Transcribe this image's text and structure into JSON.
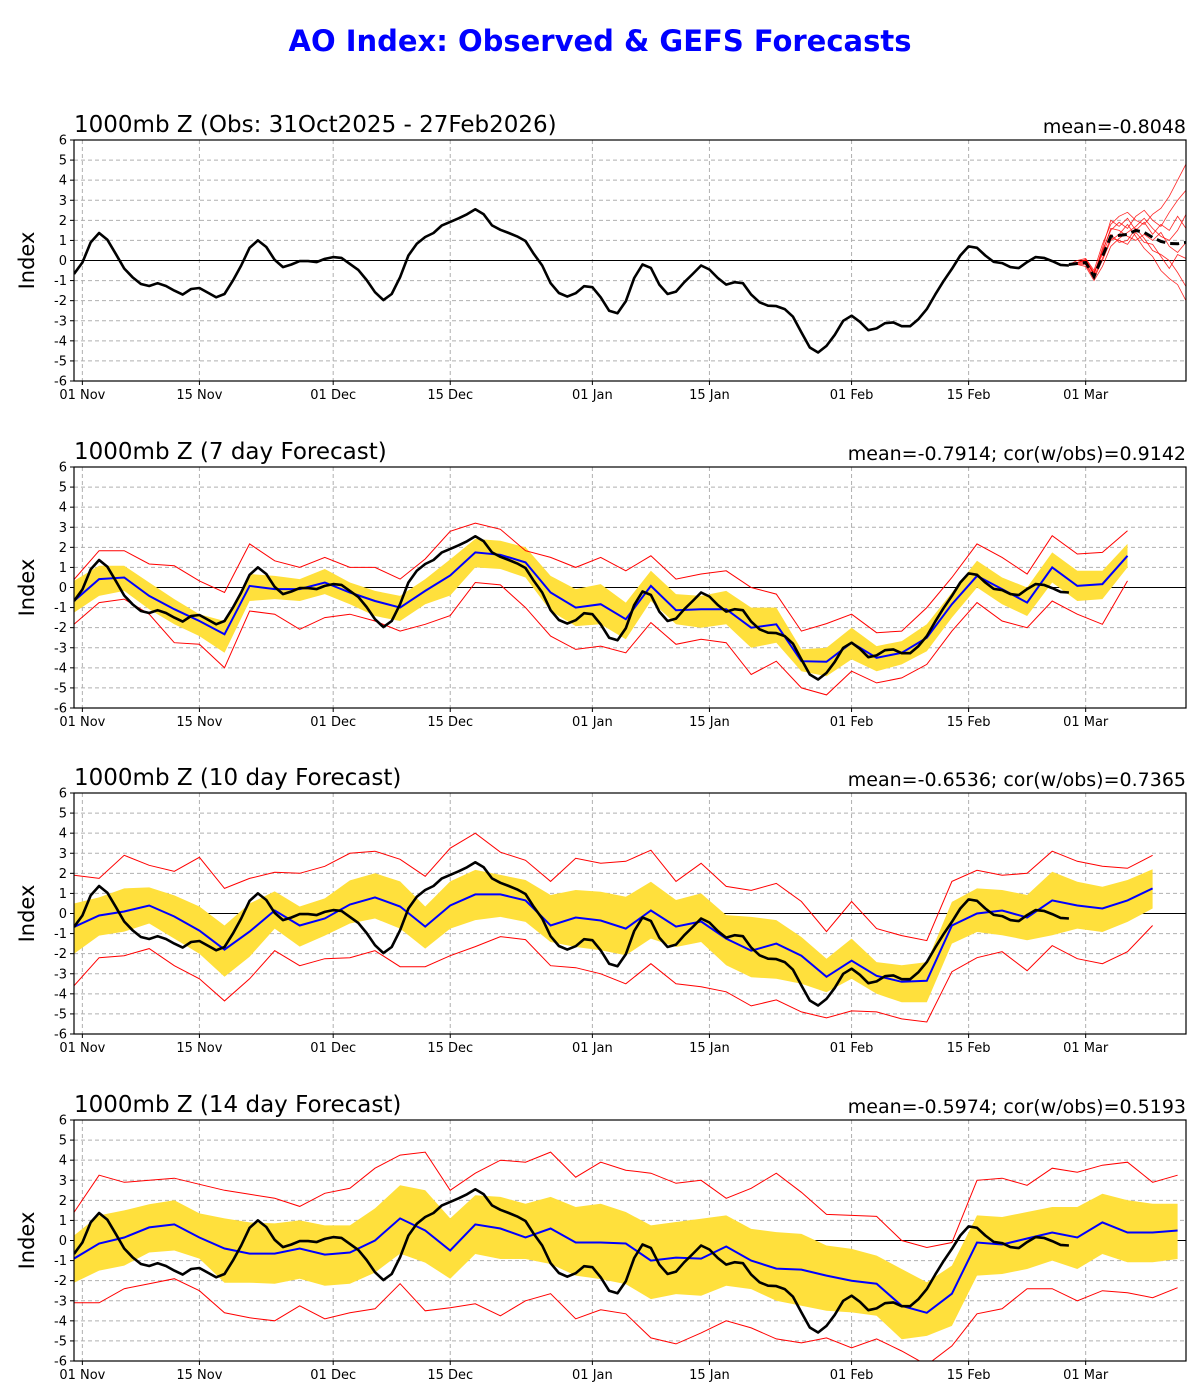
{
  "title": "AO Index: Observed & GEFS Forecasts",
  "colors": {
    "title": "#0000ff",
    "observed": "#000000",
    "ensemble_mean": "#0000ff",
    "spread_band": "#ffe03c",
    "min_max": "#ff0000",
    "members": "#ff0000",
    "grid": "#b0b0b0"
  },
  "y_ticks": [
    "-6",
    "-5",
    "-4",
    "-3",
    "-2",
    "-1",
    "0",
    "1",
    "2",
    "3",
    "4",
    "5",
    "6"
  ],
  "x_ticks": [
    {
      "label": "01 Nov",
      "date": "2025-11-01"
    },
    {
      "label": "15 Nov",
      "date": "2025-11-15"
    },
    {
      "label": "01 Dec",
      "date": "2025-12-01"
    },
    {
      "label": "15 Dec",
      "date": "2025-12-15"
    },
    {
      "label": "01 Jan",
      "date": "2026-01-01"
    },
    {
      "label": "15 Jan",
      "date": "2026-01-15"
    },
    {
      "label": "01 Feb",
      "date": "2026-02-01"
    },
    {
      "label": "15 Feb",
      "date": "2026-02-15"
    },
    {
      "label": "01 Mar",
      "date": "2026-03-01"
    }
  ],
  "chart_data": {
    "type": "line",
    "ylabel": "Index",
    "ylim": [
      -6,
      6
    ],
    "xlim": [
      "2025-10-31",
      "2026-03-13"
    ],
    "grid": true,
    "observed": {
      "start": "2025-10-31",
      "end": "2026-02-27",
      "step_days": 1,
      "values": [
        -0.67,
        -0.1,
        0.9,
        1.37,
        1.03,
        0.33,
        -0.4,
        -0.83,
        -1.17,
        -1.27,
        -1.13,
        -1.27,
        -1.5,
        -1.7,
        -1.42,
        -1.37,
        -1.6,
        -1.83,
        -1.67,
        -1.0,
        -0.25,
        0.63,
        1.0,
        0.67,
        0.03,
        -0.33,
        -0.2,
        -0.03,
        -0.03,
        -0.08,
        0.08,
        0.17,
        0.13,
        -0.17,
        -0.47,
        -0.97,
        -1.58,
        -1.97,
        -1.67,
        -0.83,
        0.25,
        0.83,
        1.17,
        1.37,
        1.75,
        1.92,
        2.1,
        2.3,
        2.55,
        2.3,
        1.75,
        1.53,
        1.37,
        1.2,
        0.97,
        0.33,
        -0.25,
        -1.13,
        -1.62,
        -1.8,
        -1.63,
        -1.28,
        -1.33,
        -1.83,
        -2.5,
        -2.63,
        -2.03,
        -0.87,
        -0.2,
        -0.37,
        -1.2,
        -1.67,
        -1.55,
        -1.08,
        -0.67,
        -0.25,
        -0.45,
        -0.87,
        -1.2,
        -1.08,
        -1.13,
        -1.7,
        -2.08,
        -2.25,
        -2.27,
        -2.42,
        -2.8,
        -3.58,
        -4.33,
        -4.58,
        -4.25,
        -3.7,
        -3.0,
        -2.75,
        -3.05,
        -3.47,
        -3.38,
        -3.12,
        -3.08,
        -3.27,
        -3.27,
        -2.92,
        -2.42,
        -1.7,
        -1.03,
        -0.42,
        0.25,
        0.7,
        0.63,
        0.25,
        -0.07,
        -0.13,
        -0.33,
        -0.38,
        -0.08,
        0.17,
        0.13,
        -0.03,
        -0.22,
        -0.25
      ]
    },
    "forecast_dates": [
      "2025-10-31",
      "2025-11-03",
      "2025-11-06",
      "2025-11-09",
      "2025-11-12",
      "2025-11-15",
      "2025-11-18",
      "2025-11-21",
      "2025-11-24",
      "2025-11-27",
      "2025-11-30",
      "2025-12-03",
      "2025-12-06",
      "2025-12-09",
      "2025-12-12",
      "2025-12-15",
      "2025-12-18",
      "2025-12-21",
      "2025-12-24",
      "2025-12-27",
      "2025-12-30",
      "2026-01-02",
      "2026-01-05",
      "2026-01-08",
      "2026-01-11",
      "2026-01-14",
      "2026-01-17",
      "2026-01-20",
      "2026-01-23",
      "2026-01-26",
      "2026-01-29",
      "2026-02-01",
      "2026-02-04",
      "2026-02-07",
      "2026-02-10",
      "2026-02-13",
      "2026-02-16",
      "2026-02-19",
      "2026-02-22",
      "2026-02-25",
      "2026-02-28",
      "2026-03-03",
      "2026-03-06",
      "2026-03-09",
      "2026-03-12"
    ],
    "panels": [
      {
        "title": "1000mb Z (Obs: 31Oct2025 - 27Feb2026)",
        "stats": "mean=-0.8048",
        "ensemble": {
          "start": "2026-02-27",
          "mean": [
            -0.2,
            -0.15,
            -0.1,
            -0.8,
            0.2,
            1.2,
            1.25,
            1.3,
            1.5,
            1.4,
            1.15,
            0.95,
            0.85,
            0.83,
            0.9
          ],
          "members": [
            [
              -0.2,
              0,
              0.1,
              -0.5,
              0.8,
              1.8,
              2.2,
              2.4,
              2.0,
              1.8,
              2.3,
              2.6,
              3.2,
              4.0,
              4.8
            ],
            [
              -0.2,
              -0.1,
              0,
              -0.7,
              0.5,
              1.5,
              1.9,
              1.6,
              2.2,
              2.5,
              2.0,
              1.7,
              2.4,
              3.0,
              3.5
            ],
            [
              -0.2,
              -0.2,
              -0.2,
              -0.9,
              0.0,
              1.0,
              1.3,
              1.8,
              1.2,
              0.6,
              0.2,
              -0.5,
              -0.9,
              -1.2,
              -2.0
            ],
            [
              -0.2,
              -0.1,
              -0.1,
              -0.6,
              0.3,
              1.3,
              0.9,
              1.0,
              1.6,
              1.1,
              0.5,
              0.3,
              0.0,
              -0.6,
              -1.3
            ],
            [
              -0.2,
              -0.2,
              -0.3,
              -1.0,
              -0.3,
              0.7,
              1.1,
              1.4,
              1.7,
              2.1,
              1.6,
              1.2,
              1.0,
              1.5,
              2.3
            ],
            [
              -0.2,
              -0.1,
              0.05,
              -0.6,
              0.4,
              1.6,
              1.5,
              1.2,
              1.0,
              1.3,
              1.0,
              1.4,
              0.7,
              0.4,
              0.9
            ],
            [
              -0.2,
              -0.15,
              -0.15,
              -0.8,
              0.1,
              1.1,
              1.0,
              0.8,
              1.4,
              0.9,
              0.8,
              0.2,
              -0.4,
              0.3,
              0.1
            ],
            [
              -0.2,
              -0.1,
              0.0,
              -0.7,
              0.6,
              2.0,
              1.7,
              2.1,
              1.5,
              1.9,
              1.3,
              1.8,
              1.5,
              2.2,
              1.6
            ]
          ]
        }
      },
      {
        "title": "1000mb Z (7 day Forecast)",
        "stats": "mean=-0.7914; cor(w/obs)=0.9142",
        "mean": [
          -0.67,
          0.42,
          0.5,
          -0.42,
          -1.08,
          -1.67,
          -2.33,
          0.08,
          -0.08,
          -0.08,
          0.25,
          -0.25,
          -0.67,
          -1.0,
          -0.17,
          0.6,
          1.75,
          1.63,
          1.25,
          -0.25,
          -1.0,
          -0.83,
          -1.58,
          0.08,
          -1.13,
          -1.08,
          -1.08,
          -2.0,
          -1.83,
          -3.67,
          -3.7,
          -2.75,
          -3.5,
          -3.25,
          -2.5,
          -0.83,
          0.58,
          -0.08,
          -0.75,
          1.0,
          0.08,
          0.17,
          1.58
        ],
        "band_high": [
          0.33,
          1.08,
          1.08,
          0.25,
          -0.58,
          -1.33,
          -1.67,
          0.67,
          0.58,
          0.42,
          0.92,
          0.25,
          -0.17,
          -0.42,
          0.42,
          1.4,
          2.42,
          2.33,
          2.0,
          0.58,
          -0.08,
          0.17,
          -0.75,
          0.83,
          -0.33,
          -0.42,
          -0.17,
          -1.0,
          -1.0,
          -3.08,
          -3.0,
          -2.0,
          -2.92,
          -2.67,
          -1.83,
          -0.25,
          1.33,
          0.5,
          0,
          1.75,
          0.83,
          0.83,
          2.17
        ],
        "band_low": [
          -1.25,
          -0.42,
          -0.17,
          -1.08,
          -1.83,
          -2.42,
          -3.25,
          -0.67,
          -0.58,
          -0.67,
          -0.33,
          -0.83,
          -1.42,
          -1.67,
          -0.83,
          -0.4,
          1.0,
          0.92,
          0.5,
          -1.17,
          -1.92,
          -1.83,
          -2.58,
          -0.67,
          -1.83,
          -2.0,
          -1.83,
          -3.0,
          -2.75,
          -4.17,
          -4.42,
          -3.58,
          -4.17,
          -3.83,
          -3.17,
          -1.5,
          0.0,
          -0.83,
          -1.42,
          0.25,
          -0.67,
          -0.58,
          1.0
        ],
        "max": [
          0.4,
          1.83,
          1.83,
          1.17,
          1.08,
          0.33,
          -0.25,
          2.17,
          1.33,
          1.0,
          1.5,
          1.0,
          1.0,
          0.42,
          1.42,
          2.8,
          3.2,
          2.9,
          1.83,
          1.5,
          1.0,
          1.5,
          0.83,
          1.58,
          0.42,
          0.67,
          0.83,
          0,
          -0.33,
          -2.17,
          -1.8,
          -1.33,
          -2.25,
          -2.17,
          -1.0,
          0.5,
          2.17,
          1.5,
          0.67,
          2.58,
          1.67,
          1.75,
          2.83
        ],
        "min": [
          -1.83,
          -0.75,
          -0.58,
          -1.33,
          -2.75,
          -2.83,
          -4.0,
          -1.17,
          -1.33,
          -2.08,
          -1.5,
          -1.33,
          -1.67,
          -2.17,
          -1.83,
          -1.4,
          0.25,
          0.13,
          -1.0,
          -2.42,
          -3.08,
          -2.92,
          -3.25,
          -1.75,
          -2.83,
          -2.58,
          -2.75,
          -4.33,
          -3.67,
          -5.0,
          -5.35,
          -4.17,
          -4.75,
          -4.5,
          -3.83,
          -2.17,
          -0.75,
          -1.67,
          -2.0,
          -0.67,
          -1.33,
          -1.83,
          0.33
        ]
      },
      {
        "title": "1000mb Z (10 day Forecast)",
        "stats": "mean=-0.6536; cor(w/obs)=0.7365",
        "mean": [
          -0.67,
          -0.1,
          0.1,
          0.4,
          -0.15,
          -0.85,
          -1.8,
          -0.9,
          0.15,
          -0.6,
          -0.25,
          0.45,
          0.8,
          0.35,
          -0.65,
          0.4,
          0.95,
          0.95,
          0.65,
          -0.6,
          -0.2,
          -0.35,
          -0.75,
          0.15,
          -0.65,
          -0.4,
          -1.25,
          -1.85,
          -1.5,
          -2.1,
          -3.15,
          -2.35,
          -3.1,
          -3.4,
          -3.35,
          -0.6,
          0.0,
          0.15,
          -0.2,
          0.65,
          0.4,
          0.25,
          0.65,
          1.25
        ],
        "band_high": [
          0.5,
          0.8,
          1.25,
          1.3,
          0.9,
          0.35,
          -0.6,
          0.5,
          1.1,
          0.35,
          0.75,
          1.65,
          2.0,
          1.6,
          0.35,
          1.6,
          2.17,
          1.92,
          1.67,
          0.92,
          1.17,
          1.08,
          0.83,
          1.58,
          0.67,
          1.0,
          -0.08,
          -0.17,
          -0.33,
          -1.17,
          -2.25,
          -1.25,
          -2.42,
          -2.58,
          -2.42,
          0.58,
          1.25,
          1.17,
          0.92,
          2.08,
          1.58,
          1.33,
          1.67,
          2.2
        ],
        "band_low": [
          -2.0,
          -1.1,
          -0.9,
          -0.5,
          -1.25,
          -2.0,
          -3.15,
          -2.15,
          -0.75,
          -1.65,
          -1.1,
          -0.5,
          -0.25,
          -0.75,
          -1.75,
          -0.75,
          -0.33,
          -0.17,
          -0.42,
          -1.42,
          -1.67,
          -1.83,
          -2.08,
          -1.25,
          -1.67,
          -1.42,
          -2.58,
          -3.17,
          -3.25,
          -3.5,
          -3.92,
          -3.25,
          -4.0,
          -4.42,
          -4.42,
          -1.5,
          -0.92,
          -1.08,
          -1.33,
          -1.08,
          -0.75,
          -0.92,
          -0.42,
          0.25
        ],
        "max": [
          1.9,
          1.75,
          2.9,
          2.4,
          2.1,
          2.8,
          1.25,
          1.75,
          2.05,
          2.0,
          2.35,
          3.0,
          3.1,
          2.7,
          1.85,
          3.25,
          4.0,
          3.05,
          2.65,
          1.6,
          2.75,
          2.5,
          2.6,
          3.15,
          1.6,
          2.5,
          1.35,
          1.15,
          1.5,
          0.6,
          -0.9,
          0.6,
          -0.75,
          -1.1,
          -1.35,
          1.6,
          2.15,
          1.9,
          2.0,
          3.1,
          2.6,
          2.35,
          2.25,
          2.9
        ],
        "min": [
          -3.6,
          -2.2,
          -2.1,
          -1.75,
          -2.6,
          -3.25,
          -4.35,
          -3.25,
          -1.85,
          -2.6,
          -2.25,
          -2.2,
          -1.85,
          -2.65,
          -2.65,
          -2.1,
          -1.65,
          -1.15,
          -1.3,
          -2.6,
          -2.7,
          -3.0,
          -3.5,
          -2.5,
          -3.5,
          -3.65,
          -3.9,
          -4.6,
          -4.3,
          -4.9,
          -5.2,
          -4.85,
          -4.9,
          -5.25,
          -5.4,
          -2.9,
          -2.2,
          -1.9,
          -2.85,
          -1.6,
          -2.25,
          -2.5,
          -1.9,
          -0.6
        ]
      },
      {
        "title": "1000mb Z (14 day Forecast)",
        "stats": "mean=-0.5974; cor(w/obs)=0.5193",
        "mean": [
          -0.9,
          -0.15,
          0.15,
          0.65,
          0.8,
          0.15,
          -0.4,
          -0.65,
          -0.65,
          -0.4,
          -0.7,
          -0.6,
          0.0,
          1.1,
          0.5,
          -0.5,
          0.8,
          0.6,
          0.15,
          0.6,
          -0.1,
          -0.1,
          -0.15,
          -1.0,
          -0.85,
          -0.9,
          -0.3,
          -1.0,
          -1.4,
          -1.45,
          -1.75,
          -2.0,
          -2.15,
          -3.25,
          -3.6,
          -2.65,
          -0.1,
          -0.2,
          0.1,
          0.4,
          0.15,
          0.9,
          0.4,
          0.4,
          0.5
        ],
        "band_high": [
          0.25,
          1.25,
          1.5,
          1.8,
          2.0,
          1.35,
          1.1,
          0.9,
          0.85,
          1.0,
          0.75,
          0.75,
          1.6,
          2.75,
          2.5,
          1.1,
          2.25,
          2.17,
          1.83,
          2.17,
          1.67,
          1.83,
          1.42,
          0.75,
          0.92,
          1.08,
          1.25,
          0.58,
          0.42,
          0.33,
          -0.25,
          -0.42,
          -0.75,
          -1.42,
          -2.08,
          -1.25,
          1.25,
          1.17,
          1.42,
          1.67,
          1.67,
          2.33,
          2.0,
          1.83,
          1.83
        ],
        "band_low": [
          -2.1,
          -1.5,
          -1.25,
          -0.6,
          -0.5,
          -0.9,
          -2.1,
          -2.1,
          -2.15,
          -1.9,
          -2.25,
          -2.15,
          -1.6,
          -0.65,
          -1.1,
          -1.9,
          -0.67,
          -0.92,
          -0.92,
          -1.17,
          -1.75,
          -1.92,
          -2.17,
          -2.92,
          -2.67,
          -2.75,
          -2.25,
          -2.42,
          -3.0,
          -3.25,
          -3.5,
          -3.58,
          -3.75,
          -4.92,
          -4.75,
          -4.25,
          -1.75,
          -1.67,
          -1.42,
          -1.0,
          -1.42,
          -0.67,
          -1.08,
          -1.08,
          -0.92
        ],
        "max": [
          1.4,
          3.25,
          2.9,
          3.0,
          3.1,
          2.8,
          2.5,
          2.3,
          2.1,
          1.7,
          2.35,
          2.6,
          3.6,
          4.25,
          4.4,
          2.5,
          3.35,
          4.0,
          3.9,
          4.4,
          3.15,
          3.9,
          3.5,
          3.35,
          2.85,
          3.0,
          2.1,
          2.6,
          3.35,
          2.4,
          1.3,
          1.25,
          1.2,
          0,
          -0.35,
          -0.1,
          3.0,
          3.1,
          2.75,
          3.6,
          3.4,
          3.75,
          3.9,
          2.9,
          3.25
        ],
        "min": [
          -3.1,
          -3.1,
          -2.4,
          -2.15,
          -1.9,
          -2.5,
          -3.6,
          -3.85,
          -4.0,
          -3.25,
          -3.9,
          -3.6,
          -3.4,
          -2.15,
          -3.5,
          -3.35,
          -3.15,
          -3.75,
          -3.0,
          -2.65,
          -3.9,
          -3.45,
          -3.65,
          -4.85,
          -5.15,
          -4.6,
          -4.0,
          -4.35,
          -4.9,
          -5.1,
          -4.85,
          -5.35,
          -4.9,
          -5.5,
          -6.2,
          -5.25,
          -3.65,
          -3.4,
          -2.4,
          -2.4,
          -3.0,
          -2.5,
          -2.6,
          -2.85,
          -2.35
        ]
      }
    ]
  }
}
